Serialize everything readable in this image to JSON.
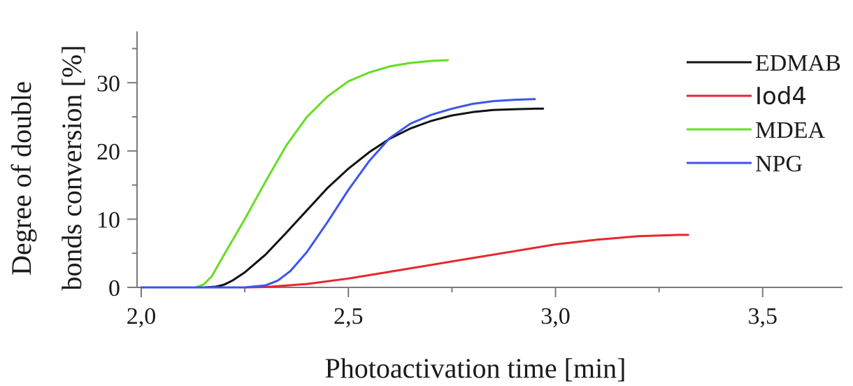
{
  "chart_data": {
    "type": "line",
    "xlabel": "Photoactivation time [min]",
    "ylabel_line1": "Degree of double",
    "ylabel_line2": "bonds conversion [%]",
    "xlim": [
      2.0,
      3.6
    ],
    "ylim": [
      0,
      37
    ],
    "x_ticks": [
      2.0,
      2.5,
      3.0,
      3.5
    ],
    "x_tick_labels": [
      "2,0",
      "2,5",
      "3,0",
      "3,5"
    ],
    "x_minor_ticks": [
      2.25,
      2.75,
      3.25
    ],
    "y_ticks": [
      0,
      10,
      20,
      30
    ],
    "y_tick_labels": [
      "0",
      "10",
      "20",
      "30"
    ],
    "y_minor_ticks": [
      5,
      15,
      25,
      35
    ],
    "grid": false,
    "legend_position": "top-right",
    "series": [
      {
        "name": "EDMAB",
        "color": "#111111",
        "x": [
          2.0,
          2.15,
          2.18,
          2.2,
          2.22,
          2.25,
          2.3,
          2.35,
          2.4,
          2.45,
          2.5,
          2.55,
          2.6,
          2.65,
          2.7,
          2.75,
          2.8,
          2.85,
          2.9,
          2.95,
          2.97
        ],
        "y": [
          0,
          0,
          0.1,
          0.4,
          1.0,
          2.2,
          4.8,
          8.0,
          11.3,
          14.6,
          17.4,
          19.8,
          21.8,
          23.3,
          24.4,
          25.2,
          25.7,
          26.0,
          26.1,
          26.2,
          26.2
        ]
      },
      {
        "name": "Iod4",
        "color": "#e8262c",
        "x": [
          2.0,
          2.25,
          2.3,
          2.4,
          2.5,
          2.6,
          2.7,
          2.8,
          2.9,
          3.0,
          3.1,
          3.2,
          3.3,
          3.32
        ],
        "y": [
          0,
          0,
          0.05,
          0.5,
          1.3,
          2.3,
          3.3,
          4.3,
          5.3,
          6.3,
          7.0,
          7.5,
          7.7,
          7.7
        ]
      },
      {
        "name": "MDEA",
        "color": "#66dd22",
        "x": [
          2.0,
          2.13,
          2.15,
          2.17,
          2.2,
          2.25,
          2.3,
          2.35,
          2.4,
          2.45,
          2.5,
          2.55,
          2.6,
          2.65,
          2.7,
          2.74
        ],
        "y": [
          0,
          0,
          0.4,
          1.6,
          4.8,
          10.0,
          15.5,
          20.8,
          25.0,
          28.0,
          30.2,
          31.5,
          32.4,
          32.9,
          33.2,
          33.3
        ]
      },
      {
        "name": "NPG",
        "color": "#3a55ee",
        "x": [
          2.0,
          2.25,
          2.3,
          2.33,
          2.36,
          2.4,
          2.45,
          2.5,
          2.55,
          2.6,
          2.65,
          2.7,
          2.75,
          2.8,
          2.85,
          2.9,
          2.95
        ],
        "y": [
          0,
          0,
          0.3,
          1.0,
          2.4,
          5.2,
          9.6,
          14.3,
          18.5,
          21.9,
          24.0,
          25.3,
          26.2,
          26.9,
          27.3,
          27.5,
          27.6
        ]
      }
    ]
  }
}
